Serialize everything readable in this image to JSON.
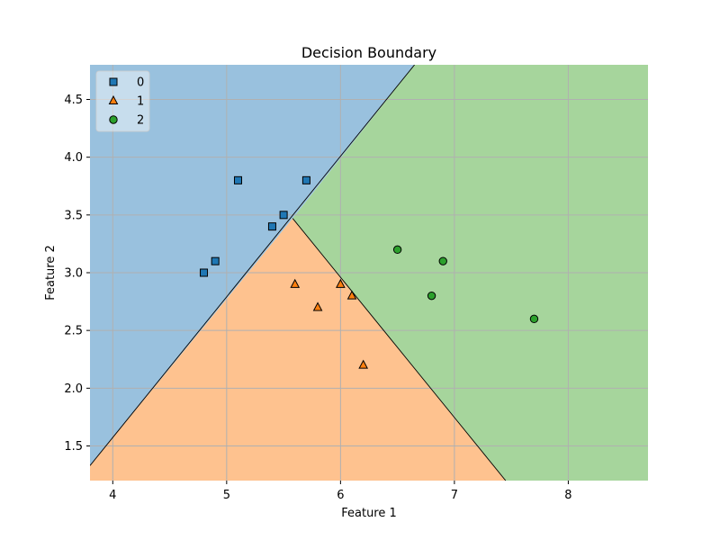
{
  "chart_data": {
    "type": "scatter",
    "title": "Decision Boundary",
    "xlabel": "Feature 1",
    "ylabel": "Feature 2",
    "xlim": [
      3.8,
      8.7
    ],
    "ylim": [
      1.2,
      4.8
    ],
    "xticks": [
      4,
      5,
      6,
      7,
      8
    ],
    "yticks": [
      1.5,
      2.0,
      2.5,
      3.0,
      3.5,
      4.0,
      4.5
    ],
    "xtick_labels": [
      "4",
      "5",
      "6",
      "7",
      "8"
    ],
    "ytick_labels": [
      "1.5",
      "2.0",
      "2.5",
      "3.0",
      "3.5",
      "4.0",
      "4.5"
    ],
    "grid": true,
    "legend_position": "top-left",
    "regions": [
      {
        "class": "0",
        "color": "#99c1de",
        "polygon": [
          [
            3.8,
            4.8
          ],
          [
            6.65,
            4.8
          ],
          [
            5.58,
            3.47
          ],
          [
            3.8,
            1.33
          ]
        ]
      },
      {
        "class": "1",
        "color": "#fec28f",
        "polygon": [
          [
            3.8,
            1.33
          ],
          [
            5.58,
            3.47
          ],
          [
            7.45,
            1.2
          ],
          [
            3.8,
            1.2
          ]
        ]
      },
      {
        "class": "2",
        "color": "#a6d59c",
        "polygon": [
          [
            6.65,
            4.8
          ],
          [
            8.7,
            4.8
          ],
          [
            8.7,
            1.2
          ],
          [
            7.45,
            1.2
          ],
          [
            5.58,
            3.47
          ]
        ]
      }
    ],
    "boundaries": [
      [
        [
          3.8,
          1.33
        ],
        [
          6.65,
          4.8
        ]
      ],
      [
        [
          5.58,
          3.47
        ],
        [
          7.45,
          1.2
        ]
      ]
    ],
    "series": [
      {
        "name": "0",
        "marker": "square",
        "color": "#1f77b4",
        "points": [
          [
            4.8,
            3.0
          ],
          [
            4.9,
            3.1
          ],
          [
            5.1,
            3.8
          ],
          [
            5.4,
            3.4
          ],
          [
            5.5,
            3.5
          ],
          [
            5.7,
            3.8
          ]
        ]
      },
      {
        "name": "1",
        "marker": "triangle",
        "color": "#ff7f0e",
        "points": [
          [
            5.6,
            2.9
          ],
          [
            5.8,
            2.7
          ],
          [
            6.0,
            2.9
          ],
          [
            6.1,
            2.8
          ],
          [
            6.2,
            2.2
          ]
        ]
      },
      {
        "name": "2",
        "marker": "circle",
        "color": "#2ca02c",
        "points": [
          [
            6.5,
            3.2
          ],
          [
            6.8,
            2.8
          ],
          [
            6.9,
            3.1
          ],
          [
            7.7,
            2.6
          ]
        ]
      }
    ]
  }
}
